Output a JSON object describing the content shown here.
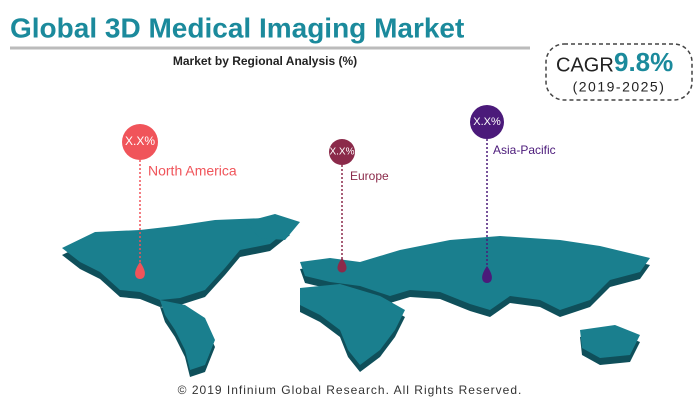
{
  "header": {
    "title": "Global 3D Medical Imaging Market",
    "subtitle": "Market by Regional Analysis (%)"
  },
  "cagr": {
    "label": "CAGR",
    "value": "9.8%",
    "period": "(2019-2025)"
  },
  "regions": [
    {
      "name": "North America",
      "share": "X.X%"
    },
    {
      "name": "Europe",
      "share": "X.X%"
    },
    {
      "name": "Asia-Pacific",
      "share": "X.X%"
    }
  ],
  "footer": "© 2019 Infinium Global Research. All Rights Reserved."
}
